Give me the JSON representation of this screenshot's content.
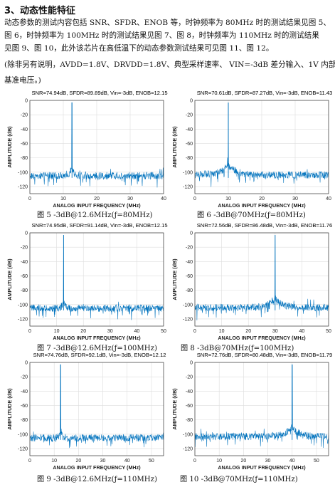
{
  "section": {
    "heading": "3、动态性能特征"
  },
  "paragraphs": [
    "动态参数的测试内容包括 SNR、SFDR、ENOB 等，时钟频率为 80MHz 时的测试结果见图 5、",
    "图 6，时钟频率为 100MHz 时的测试结果见图 7、图 8，时钟频率为 110MHz 时的测试结果",
    "见图 9、图 10，此外该芯片在高低温下的动态参数测试结果可见图 11、图 12。",
    "(除非另有说明，AVDD=1.8V、DRVDD=1.8V、典型采样速率、  VIN=-3dB 差分输入、1V 内部",
    "基准电压。)"
  ],
  "charts_common": {
    "type": "line",
    "xlabel": "ANALOG INPUT FREQUENCY (MHz)",
    "ylabel": "AMPLITUDE (dB)",
    "yticks": [
      "0",
      "-20",
      "-40",
      "-60",
      "-80",
      "-100",
      "-120"
    ],
    "ylim": [
      -130,
      0
    ],
    "grid": true,
    "color": "#0072BD"
  },
  "chart_data": [
    {
      "type": "line",
      "title": "SNR=74.94dB, SFDR=89.89dB, Vin=-3dB, ENOB=12.15",
      "caption": "图 5  -3dB@12.6MHz(ƒ=80MHz)",
      "xlim": [
        0,
        40
      ],
      "xticks": [
        "0",
        "10",
        "20",
        "30",
        "40"
      ],
      "fundamental_mhz": 12.6,
      "fundamental_db": -3,
      "noise_floor_db": -105,
      "skirt": "narrow"
    },
    {
      "type": "line",
      "title": "SNR=70.61dB, SFDR=87.27dB, Vin=-3dB, ENOB=11.43",
      "caption": "图 6  -3dB@70MHz(ƒ=80MHz)",
      "xlim": [
        0,
        40
      ],
      "xticks": [
        "0",
        "10",
        "20",
        "30",
        "40"
      ],
      "fundamental_mhz": 10,
      "fundamental_db": -3,
      "noise_floor_db": -104,
      "skirt": "wide"
    },
    {
      "type": "line",
      "title": "SNR=74.95dB, SFDR=91.14dB, Vin=-3dB, ENOB=12.15",
      "caption": "图 7  -3dB@12.6MHz(ƒ=100MHz)",
      "xlim": [
        0,
        50
      ],
      "xticks": [
        "0",
        "10",
        "20",
        "30",
        "40",
        "50"
      ],
      "fundamental_mhz": 12.6,
      "fundamental_db": -3,
      "noise_floor_db": -105,
      "skirt": "narrow"
    },
    {
      "type": "line",
      "title": "SNR=72.56dB, SFDR=86.48dB, Vin=-3dB, ENOB=11.76",
      "caption": "图 8  -3dB@70MHz(ƒ=100MHz)",
      "xlim": [
        0,
        50
      ],
      "xticks": [
        "0",
        "10",
        "20",
        "30",
        "40",
        "50"
      ],
      "fundamental_mhz": 30,
      "fundamental_db": -3,
      "noise_floor_db": -104,
      "skirt": "wide"
    },
    {
      "type": "line",
      "title": "SNR=74.76dB, SFDR=92.1dB, Vin=-3dB, ENOB=12.12",
      "caption": "图 9  -3dB@12.6MHz(ƒ=110MHz)",
      "xlim": [
        0,
        55
      ],
      "xticks": [
        "0",
        "10",
        "20",
        "30",
        "40",
        "50"
      ],
      "fundamental_mhz": 12.6,
      "fundamental_db": -3,
      "noise_floor_db": -105,
      "skirt": "narrow"
    },
    {
      "type": "line",
      "title": "SNR=72.76dB, SFDR=80.48dB, Vin=-3dB, ENOB=11.79",
      "caption": "图 10  -3dB@70MHz(ƒ=110MHz)",
      "xlim": [
        0,
        55
      ],
      "xticks": [
        "0",
        "10",
        "20",
        "30",
        "40",
        "50"
      ],
      "fundamental_mhz": 40,
      "fundamental_db": -3,
      "noise_floor_db": -103,
      "skirt": "wide"
    }
  ]
}
